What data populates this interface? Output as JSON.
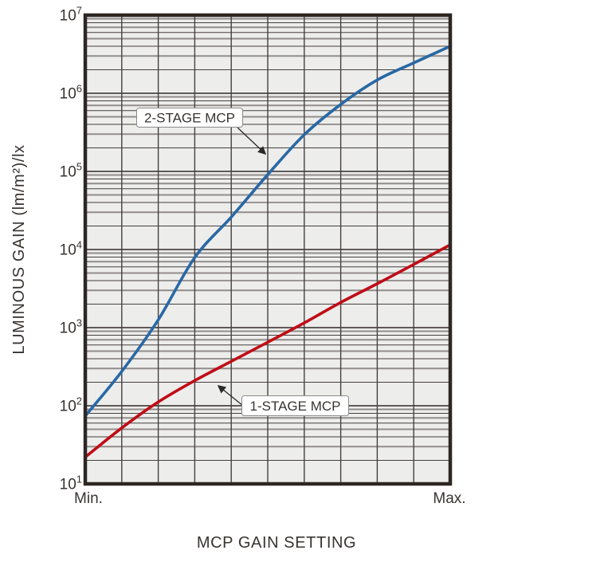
{
  "chart": {
    "y_axis_title": "LUMINOUS GAIN (lm/m²)/lx",
    "x_axis_title": "MCP GAIN SETTING",
    "x_tick_min": "Min.",
    "x_tick_max": "Max.",
    "y_ticks": [
      {
        "base": "10",
        "exp": "7"
      },
      {
        "base": "10",
        "exp": "6"
      },
      {
        "base": "10",
        "exp": "5"
      },
      {
        "base": "10",
        "exp": "4"
      },
      {
        "base": "10",
        "exp": "3"
      },
      {
        "base": "10",
        "exp": "2"
      },
      {
        "base": "10",
        "exp": "1"
      }
    ],
    "annotations": [
      {
        "label": "2-STAGE MCP"
      },
      {
        "label": "1-STAGE MCP"
      }
    ],
    "colors": {
      "plot_bg": "#ededec",
      "frame": "#2d2724",
      "grid_dark": "#45403d",
      "grid_gray": "#918d8b",
      "grid_major": "#2e2927",
      "curve_2stage": "#2868a5",
      "curve_1stage": "#c00c16",
      "leader": "#2a2a2a",
      "callout_border": "#8a8a8a",
      "callout_fill": "#ffffff",
      "text": "#383432"
    }
  },
  "chart_data": {
    "type": "line",
    "title": "",
    "xlabel": "MCP GAIN SETTING",
    "ylabel": "LUMINOUS GAIN (lm/m2)/lx",
    "x_axis": {
      "scale": "linear",
      "tick_labels": [
        "Min.",
        "Max."
      ],
      "range_normalized": [
        0,
        1
      ],
      "divisions": 10
    },
    "y_axis": {
      "scale": "log",
      "range": [
        10,
        10000000
      ],
      "tick_labels": [
        "10^1",
        "10^2",
        "10^3",
        "10^4",
        "10^5",
        "10^6",
        "10^7"
      ]
    },
    "grid": "log minor gridlines on, full box frame",
    "legend": "inline callout annotations",
    "series": [
      {
        "name": "2-STAGE MCP",
        "color": "#2868a5",
        "x": [
          0,
          0.1,
          0.2,
          0.3,
          0.4,
          0.5,
          0.6,
          0.7,
          0.8,
          0.9,
          1.0
        ],
        "gain": [
          74,
          275,
          1260,
          7900,
          26000,
          91000,
          295000,
          720000,
          1480000,
          2450000,
          4000000
        ]
      },
      {
        "name": "1-STAGE MCP",
        "color": "#c00c16",
        "x": [
          0,
          0.1,
          0.2,
          0.3,
          0.4,
          0.5,
          0.6,
          0.7,
          0.8,
          0.9,
          1.0
        ],
        "gain": [
          22,
          52,
          112,
          210,
          370,
          650,
          1150,
          2100,
          3650,
          6450,
          11500
        ]
      }
    ]
  }
}
